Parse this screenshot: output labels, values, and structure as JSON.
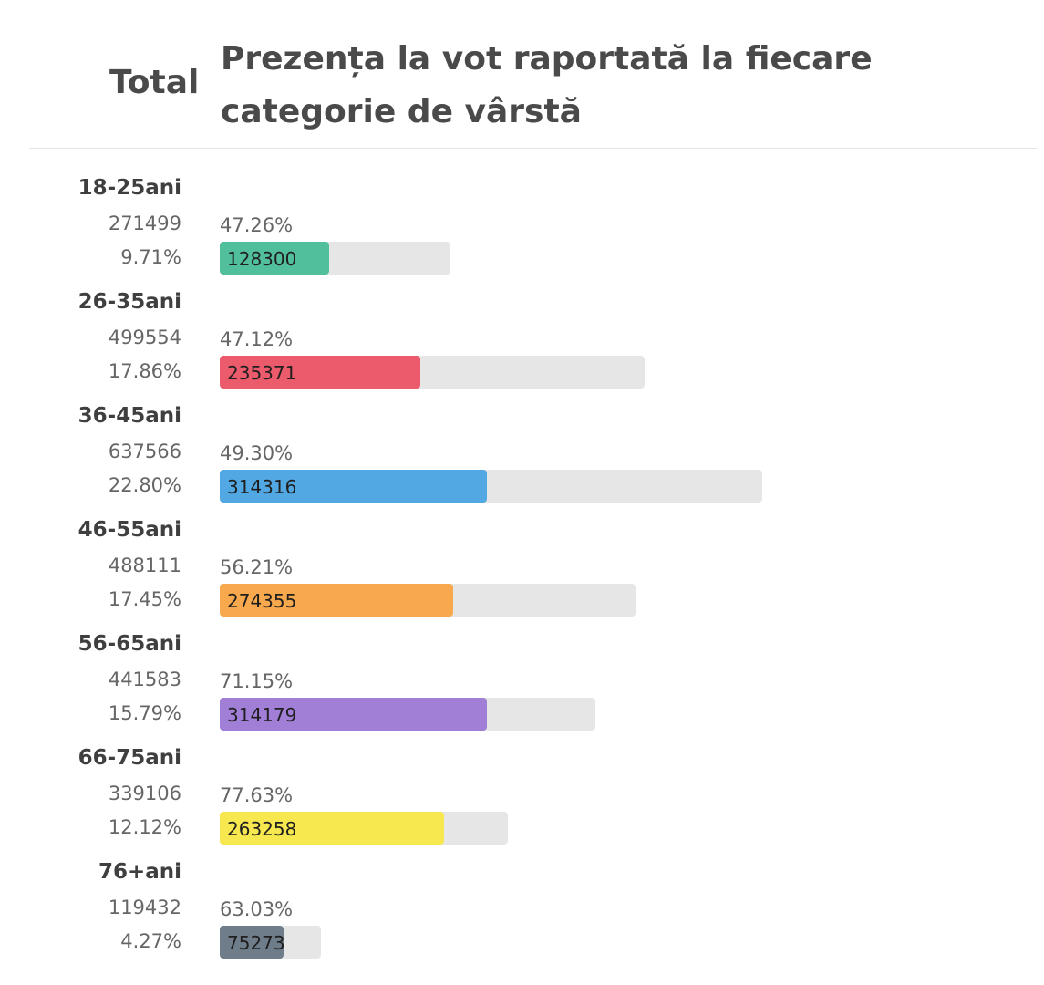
{
  "header": {
    "total_label": "Total",
    "title": "Prezența la vot raportată la fiecare categorie de vârstă"
  },
  "chart_data": {
    "type": "bar",
    "categories": [
      "18-25ani",
      "26-35ani",
      "36-45ani",
      "46-55ani",
      "56-65ani",
      "66-75ani",
      "76+ani"
    ],
    "registered": [
      "271499",
      "499554",
      "637566",
      "488111",
      "441583",
      "339106",
      "119432"
    ],
    "share_of_total": [
      "9.71%",
      "17.86%",
      "22.80%",
      "17.45%",
      "15.79%",
      "12.12%",
      "4.27%"
    ],
    "turnout": [
      "47.26%",
      "47.12%",
      "49.30%",
      "56.21%",
      "71.15%",
      "77.63%",
      "63.03%"
    ],
    "voters": [
      "128300",
      "235371",
      "314316",
      "274355",
      "314179",
      "263258",
      "75273"
    ],
    "colors": [
      "#52bf9c",
      "#eb5b6b",
      "#51a8e3",
      "#f8a84d",
      "#a17fd6",
      "#f8e84f",
      "#6f7c89"
    ],
    "track_color": "#e6e6e6"
  }
}
